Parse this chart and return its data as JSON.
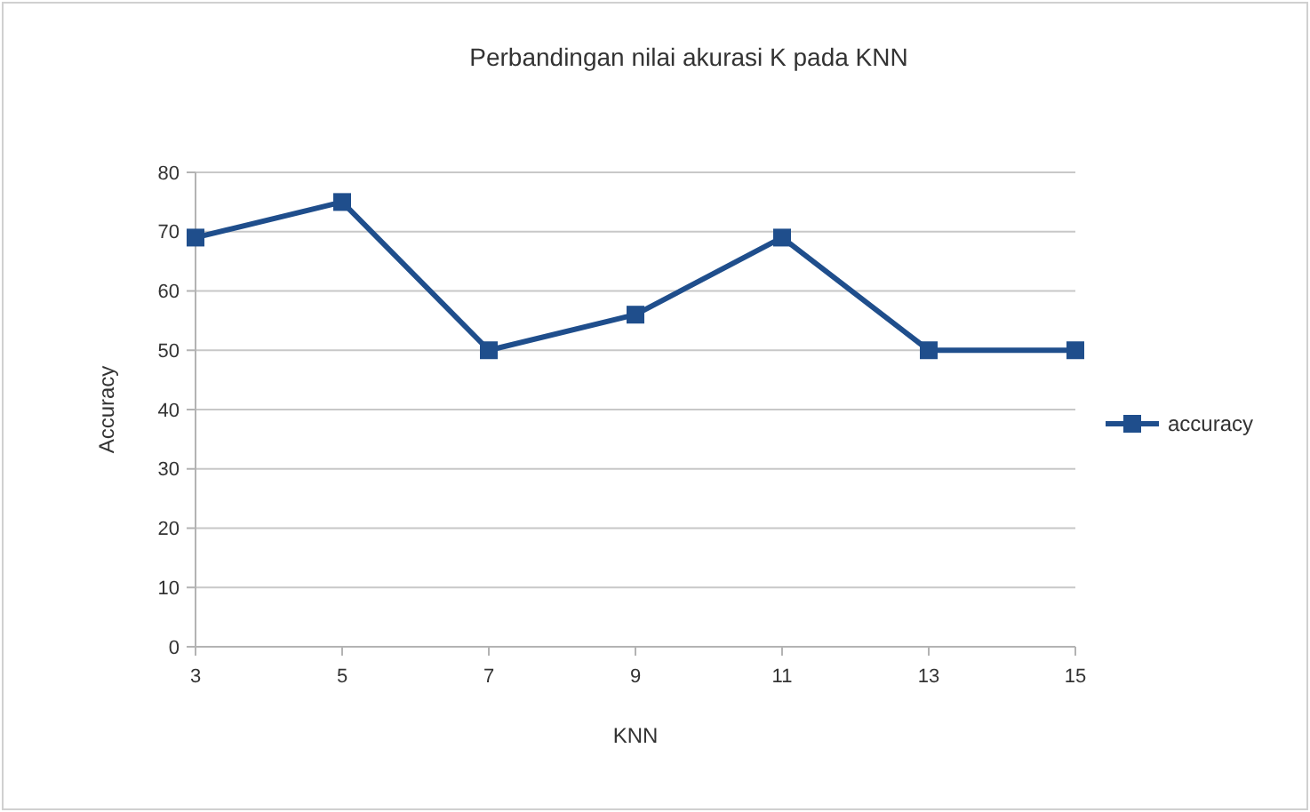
{
  "chart_data": {
    "type": "line",
    "title": "Perbandingan nilai akurasi K pada KNN",
    "xlabel": "KNN",
    "ylabel": "Accuracy",
    "x": [
      3,
      5,
      7,
      9,
      11,
      13,
      15
    ],
    "series": [
      {
        "name": "accuracy",
        "color": "#1f4e8c",
        "values": [
          69,
          75,
          50,
          56,
          69,
          50,
          50
        ]
      }
    ],
    "xlim": [
      3,
      15
    ],
    "xticks": [
      3,
      5,
      7,
      9,
      11,
      13,
      15
    ],
    "ylim": [
      0,
      80
    ],
    "yticks": [
      0,
      10,
      20,
      30,
      40,
      50,
      60,
      70,
      80
    ],
    "grid": "y",
    "legend": "right",
    "marker": "square",
    "line_style": "solid"
  }
}
